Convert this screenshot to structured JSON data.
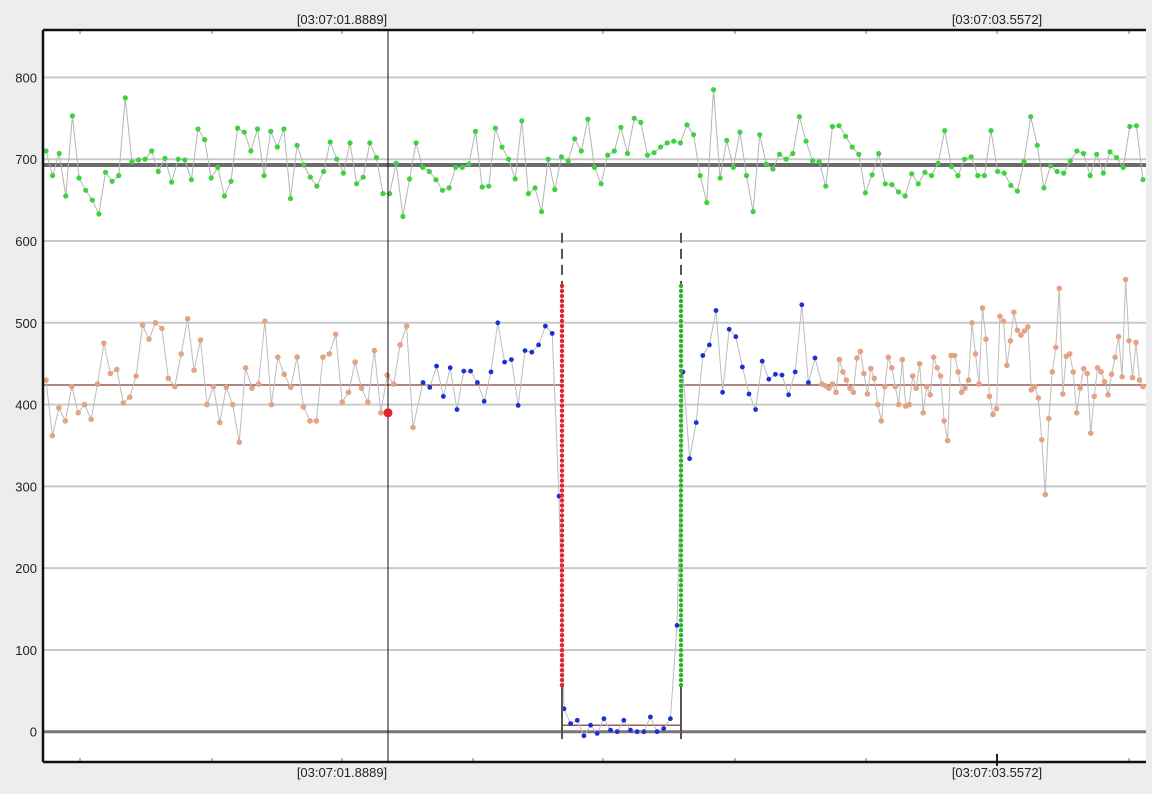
{
  "chart_data": {
    "type": "scatter",
    "title": "",
    "xlabel": "",
    "ylabel": "",
    "ylim": [
      -37,
      858
    ],
    "yticks": [
      0,
      100,
      200,
      300,
      400,
      500,
      600,
      700,
      800
    ],
    "grid": true,
    "cursor": {
      "timestamp_top": "[03:07:01.8889]",
      "timestamp_bottom": "[03:07:01.8889]"
    },
    "range_marker": {
      "timestamp_top": "[03:07:03.5572]",
      "timestamp_bottom": "[03:07:03.5572]"
    },
    "colors": {
      "upper_series": "#3fd23f",
      "lower_series": "#e4a384",
      "highlight_series": "#1a2fd6",
      "rise_edge": "#e0262a",
      "fall_edge": "#2bb52b",
      "cursor_point": "#e0262a",
      "upper_baseline": "#6b6b6b",
      "lower_baseline": "#9a5a55"
    },
    "reference_lines": [
      {
        "name": "upper-baseline",
        "y": 693
      },
      {
        "name": "lower-baseline",
        "y": 424
      },
      {
        "name": "gap-baseline",
        "y": 8
      }
    ],
    "cursor_point_value": 390,
    "gap_edges": {
      "dashed_top": 610,
      "dots_top": 545,
      "dots_bottom": 57
    },
    "upper_series": [
      710,
      680,
      707,
      655,
      753,
      677,
      662,
      650,
      633,
      684,
      673,
      680,
      775,
      697,
      699,
      700,
      710,
      685,
      701,
      672,
      700,
      699,
      675,
      737,
      724,
      677,
      690,
      655,
      673,
      738,
      733,
      710,
      737,
      680,
      734,
      715,
      737,
      652,
      717,
      693,
      678,
      667,
      685,
      721,
      700,
      683,
      720,
      670,
      678,
      720,
      702,
      658,
      658,
      695,
      630,
      676,
      720,
      690,
      685,
      675,
      662,
      665,
      690,
      690,
      694,
      734,
      666,
      667,
      738,
      715,
      700,
      676,
      747,
      658,
      665,
      636,
      700,
      663,
      703,
      698,
      725,
      710,
      749,
      690,
      670,
      705,
      710,
      739,
      707,
      750,
      745,
      705,
      708,
      715,
      720,
      722,
      720,
      742,
      730,
      680,
      647,
      785,
      677,
      723,
      690,
      733,
      680,
      636,
      730,
      694,
      688,
      706,
      700,
      707,
      752,
      722,
      698,
      697,
      667,
      740,
      741,
      728,
      715,
      706,
      659,
      681,
      707,
      670,
      669,
      660,
      655,
      682,
      670,
      684,
      680,
      695,
      735,
      691,
      680,
      700,
      703,
      680,
      680,
      735,
      685,
      683,
      668,
      661,
      697,
      752,
      717,
      665,
      692,
      685,
      683,
      698,
      710,
      707,
      680,
      706,
      683,
      709,
      702,
      690,
      740,
      741,
      675
    ],
    "lower_series": [
      430,
      362,
      396,
      380,
      422,
      390,
      400,
      382,
      425,
      475,
      438,
      443,
      402,
      409,
      435,
      497,
      480,
      500,
      493,
      432,
      422,
      462,
      505,
      442,
      479,
      400,
      422,
      378,
      421,
      400,
      354,
      445,
      420,
      425,
      502,
      400,
      458,
      437,
      421,
      458,
      397,
      380,
      380,
      458,
      462,
      486,
      403,
      415,
      452,
      420,
      403,
      466,
      390,
      436,
      425,
      473,
      496,
      372
    ],
    "lower_series_right": [
      425,
      423,
      420,
      425,
      415,
      455,
      440,
      430,
      420,
      415,
      457,
      465,
      438,
      413,
      444,
      432,
      400,
      380,
      422,
      458,
      445,
      422,
      400,
      455,
      398,
      400,
      435,
      420,
      450,
      390,
      422,
      412,
      458,
      445,
      435,
      380,
      356,
      460,
      460,
      440,
      415,
      420,
      430,
      500,
      462,
      425,
      518,
      480,
      410,
      388,
      395,
      508,
      502,
      448,
      478,
      513,
      491,
      485,
      490,
      495,
      418,
      422,
      408,
      357,
      290,
      383,
      440,
      470,
      542,
      413,
      459,
      462,
      440,
      390,
      420,
      444,
      438,
      365,
      410,
      445,
      440,
      428,
      412,
      437,
      458,
      483,
      434,
      553,
      478,
      433,
      476,
      430,
      422
    ],
    "highlight_left": [
      427,
      421,
      447,
      410,
      445,
      394,
      441,
      441,
      427,
      404,
      440,
      500,
      452,
      455,
      399,
      466,
      464,
      473,
      496,
      487,
      288
    ],
    "highlight_gap": [
      28,
      10,
      14,
      -5,
      8,
      -2,
      16,
      2,
      0,
      14,
      2,
      0,
      0,
      18,
      0,
      4,
      16,
      130
    ],
    "highlight_right": [
      440,
      334,
      378,
      460,
      473,
      515,
      415,
      492,
      483,
      446,
      413,
      394,
      453,
      431,
      437,
      436,
      412,
      440,
      522,
      427,
      457
    ]
  }
}
